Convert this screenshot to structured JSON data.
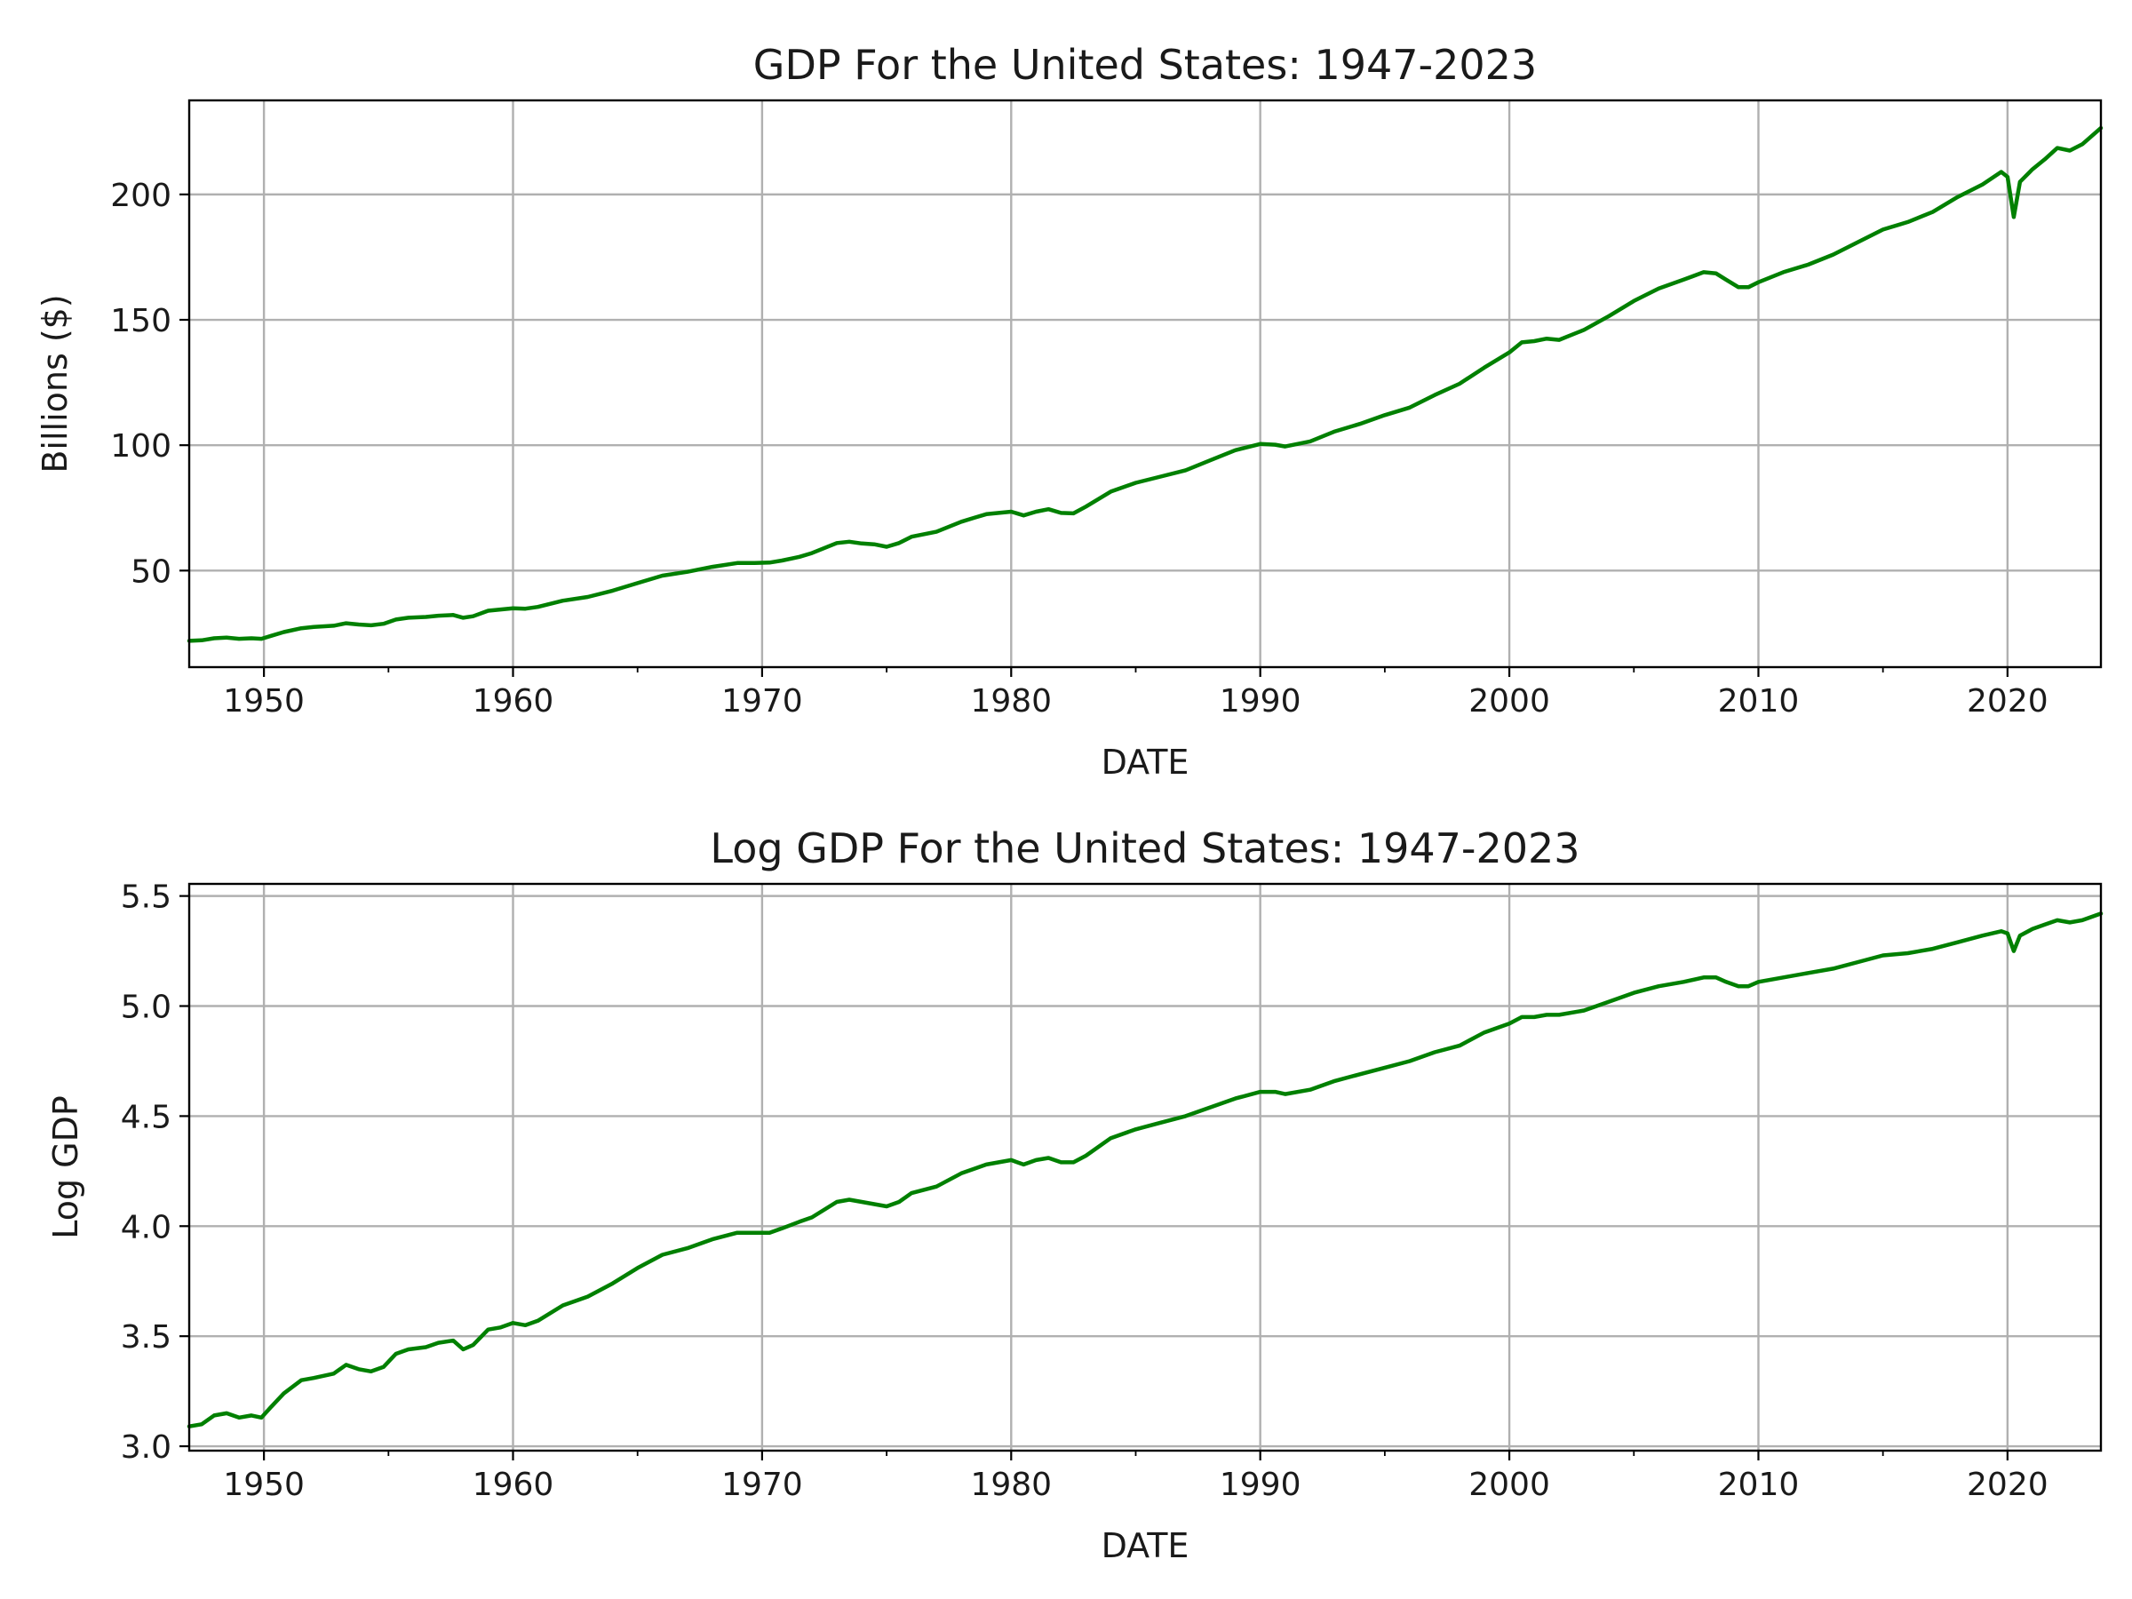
{
  "figure": {
    "line_color": "#008000"
  },
  "chart_data": [
    {
      "type": "line",
      "title": "GDP For the United States: 1947-2023",
      "xlabel": "DATE",
      "ylabel": "Billions ($)",
      "xlim": [
        1947.0,
        2023.75
      ],
      "ylim": [
        11.5,
        237.5
      ],
      "x_ticks": [
        1950,
        1960,
        1970,
        1980,
        1990,
        2000,
        2010,
        2020
      ],
      "x_tick_labels": [
        "1950",
        "1960",
        "1970",
        "1980",
        "1990",
        "2000",
        "2010",
        "2020"
      ],
      "y_ticks": [
        50,
        100,
        150,
        200
      ],
      "y_tick_labels": [
        "50",
        "100",
        "150",
        "200"
      ],
      "grid": true,
      "series": [
        {
          "x": [
            1947.0,
            1947.5,
            1948.0,
            1948.5,
            1949.0,
            1949.5,
            1949.9,
            1950.3,
            1950.8,
            1951.5,
            1952.0,
            1952.8,
            1953.3,
            1953.8,
            1954.3,
            1954.8,
            1955.3,
            1955.8,
            1956.5,
            1957.0,
            1957.6,
            1958.0,
            1958.4,
            1959.0,
            1959.5,
            1960.0,
            1960.5,
            1961.0,
            1962.0,
            1963.0,
            1964.0,
            1965.0,
            1966.0,
            1967.0,
            1968.0,
            1969.0,
            1969.7,
            1970.3,
            1970.8,
            1971.5,
            1972.0,
            1973.0,
            1973.5,
            1974.0,
            1974.5,
            1975.0,
            1975.5,
            1976.0,
            1977.0,
            1978.0,
            1978.5,
            1979.0,
            1980.0,
            1980.5,
            1981.0,
            1981.5,
            1982.0,
            1982.5,
            1983.0,
            1984.0,
            1985.0,
            1986.0,
            1987.0,
            1988.0,
            1989.0,
            1990.0,
            1990.6,
            1991.0,
            1992.0,
            1993.0,
            1994.0,
            1995.0,
            1996.0,
            1997.0,
            1998.0,
            1999.0,
            2000.0,
            2000.5,
            2001.0,
            2001.5,
            2002.0,
            2003.0,
            2004.0,
            2005.0,
            2006.0,
            2007.0,
            2007.8,
            2008.3,
            2008.7,
            2009.2,
            2009.6,
            2010.0,
            2011.0,
            2012.0,
            2013.0,
            2014.0,
            2015.0,
            2016.0,
            2017.0,
            2018.0,
            2019.0,
            2019.75,
            2020.0,
            2020.25,
            2020.5,
            2021.0,
            2021.5,
            2022.0,
            2022.5,
            2023.0,
            2023.75
          ],
          "values": [
            22.0,
            22.2,
            23.0,
            23.3,
            22.8,
            23.0,
            22.8,
            24.0,
            25.5,
            27.0,
            27.5,
            28.0,
            29.0,
            28.5,
            28.2,
            28.8,
            30.5,
            31.2,
            31.5,
            32.0,
            32.3,
            31.2,
            31.8,
            34.0,
            34.5,
            35.0,
            34.8,
            35.5,
            38.0,
            39.5,
            42.0,
            45.0,
            48.0,
            49.5,
            51.5,
            53.0,
            53.0,
            53.2,
            54.0,
            55.5,
            57.0,
            61.0,
            61.5,
            60.8,
            60.5,
            59.5,
            61.0,
            63.5,
            65.5,
            69.5,
            71.0,
            72.5,
            73.5,
            72.0,
            73.5,
            74.5,
            73.0,
            72.8,
            75.5,
            81.5,
            85.0,
            87.5,
            90.0,
            94.0,
            98.0,
            100.5,
            100.2,
            99.5,
            101.5,
            105.5,
            108.5,
            112.0,
            115.0,
            120.0,
            124.5,
            131.0,
            137.0,
            141.0,
            141.5,
            142.5,
            142.0,
            146.0,
            151.5,
            157.5,
            162.5,
            166.0,
            169.0,
            168.5,
            166.0,
            163.0,
            163.0,
            165.0,
            169.0,
            172.0,
            176.0,
            181.0,
            186.0,
            189.0,
            193.0,
            199.0,
            204.0,
            209.0,
            207.0,
            191.0,
            205.0,
            210.0,
            214.0,
            218.5,
            217.5,
            220.0,
            226.5
          ]
        }
      ]
    },
    {
      "type": "line",
      "title": "Log GDP For the United States: 1947-2023",
      "xlabel": "DATE",
      "ylabel": "Log GDP",
      "xlim": [
        1947.0,
        2023.75
      ],
      "ylim": [
        2.98,
        5.555
      ],
      "x_ticks": [
        1950,
        1960,
        1970,
        1980,
        1990,
        2000,
        2010,
        2020
      ],
      "x_tick_labels": [
        "1950",
        "1960",
        "1970",
        "1980",
        "1990",
        "2000",
        "2010",
        "2020"
      ],
      "y_ticks": [
        3.0,
        3.5,
        4.0,
        4.5,
        5.0,
        5.5
      ],
      "y_tick_labels": [
        "3.0",
        "3.5",
        "4.0",
        "4.5",
        "5.0",
        "5.5"
      ],
      "grid": true,
      "series": [
        {
          "x": [
            1947.0,
            1947.5,
            1948.0,
            1948.5,
            1949.0,
            1949.5,
            1949.9,
            1950.3,
            1950.8,
            1951.5,
            1952.0,
            1952.8,
            1953.3,
            1953.8,
            1954.3,
            1954.8,
            1955.3,
            1955.8,
            1956.5,
            1957.0,
            1957.6,
            1958.0,
            1958.4,
            1959.0,
            1959.5,
            1960.0,
            1960.5,
            1961.0,
            1962.0,
            1963.0,
            1964.0,
            1965.0,
            1966.0,
            1967.0,
            1968.0,
            1969.0,
            1969.7,
            1970.3,
            1970.8,
            1971.5,
            1972.0,
            1973.0,
            1973.5,
            1974.0,
            1974.5,
            1975.0,
            1975.5,
            1976.0,
            1977.0,
            1978.0,
            1978.5,
            1979.0,
            1980.0,
            1980.5,
            1981.0,
            1981.5,
            1982.0,
            1982.5,
            1983.0,
            1984.0,
            1985.0,
            1986.0,
            1987.0,
            1988.0,
            1989.0,
            1990.0,
            1990.6,
            1991.0,
            1992.0,
            1993.0,
            1994.0,
            1995.0,
            1996.0,
            1997.0,
            1998.0,
            1999.0,
            2000.0,
            2000.5,
            2001.0,
            2001.5,
            2002.0,
            2003.0,
            2004.0,
            2005.0,
            2006.0,
            2007.0,
            2007.8,
            2008.3,
            2008.7,
            2009.2,
            2009.6,
            2010.0,
            2011.0,
            2012.0,
            2013.0,
            2014.0,
            2015.0,
            2016.0,
            2017.0,
            2018.0,
            2019.0,
            2019.75,
            2020.0,
            2020.25,
            2020.5,
            2021.0,
            2021.5,
            2022.0,
            2022.5,
            2023.0,
            2023.75
          ],
          "values": [
            3.09,
            3.1,
            3.14,
            3.15,
            3.13,
            3.14,
            3.13,
            3.18,
            3.24,
            3.3,
            3.31,
            3.33,
            3.37,
            3.35,
            3.34,
            3.36,
            3.42,
            3.44,
            3.45,
            3.47,
            3.48,
            3.44,
            3.46,
            3.53,
            3.54,
            3.56,
            3.55,
            3.57,
            3.64,
            3.68,
            3.74,
            3.81,
            3.87,
            3.9,
            3.94,
            3.97,
            3.97,
            3.97,
            3.99,
            4.02,
            4.04,
            4.11,
            4.12,
            4.11,
            4.1,
            4.09,
            4.11,
            4.15,
            4.18,
            4.24,
            4.26,
            4.28,
            4.3,
            4.28,
            4.3,
            4.31,
            4.29,
            4.29,
            4.32,
            4.4,
            4.44,
            4.47,
            4.5,
            4.54,
            4.58,
            4.61,
            4.61,
            4.6,
            4.62,
            4.66,
            4.69,
            4.72,
            4.75,
            4.79,
            4.82,
            4.88,
            4.92,
            4.95,
            4.95,
            4.96,
            4.96,
            4.98,
            5.02,
            5.06,
            5.09,
            5.11,
            5.13,
            5.13,
            5.11,
            5.09,
            5.09,
            5.11,
            5.13,
            5.15,
            5.17,
            5.2,
            5.23,
            5.24,
            5.26,
            5.29,
            5.32,
            5.34,
            5.33,
            5.25,
            5.32,
            5.35,
            5.37,
            5.39,
            5.38,
            5.39,
            5.42
          ]
        }
      ]
    }
  ]
}
